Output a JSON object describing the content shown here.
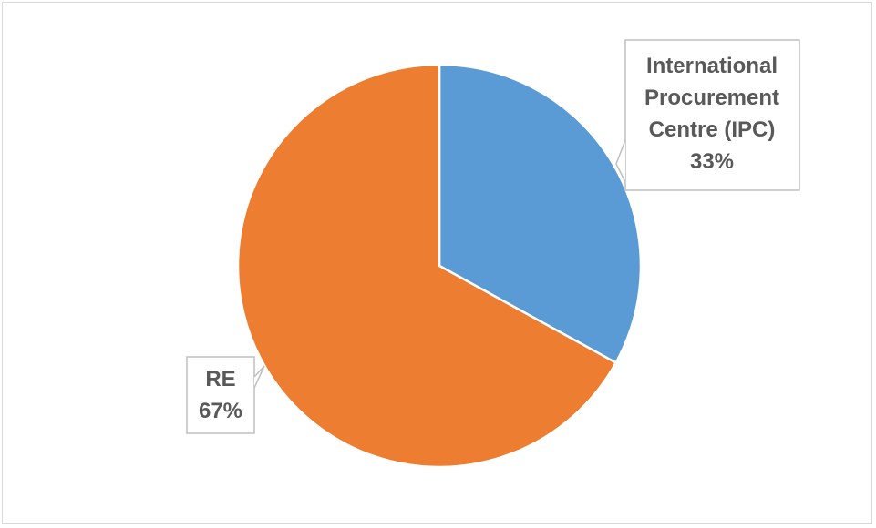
{
  "chart_data": {
    "type": "pie",
    "categories": [
      "International Procurement Centre (IPC)",
      "RE"
    ],
    "values": [
      33,
      67
    ],
    "unit": "%",
    "colors": [
      "#5B9BD5",
      "#ED7D31"
    ],
    "title": "",
    "labels": [
      {
        "lines": [
          "International",
          "Procurement",
          "Centre (IPC)",
          "33%"
        ]
      },
      {
        "lines": [
          "RE",
          "67%"
        ]
      }
    ]
  }
}
